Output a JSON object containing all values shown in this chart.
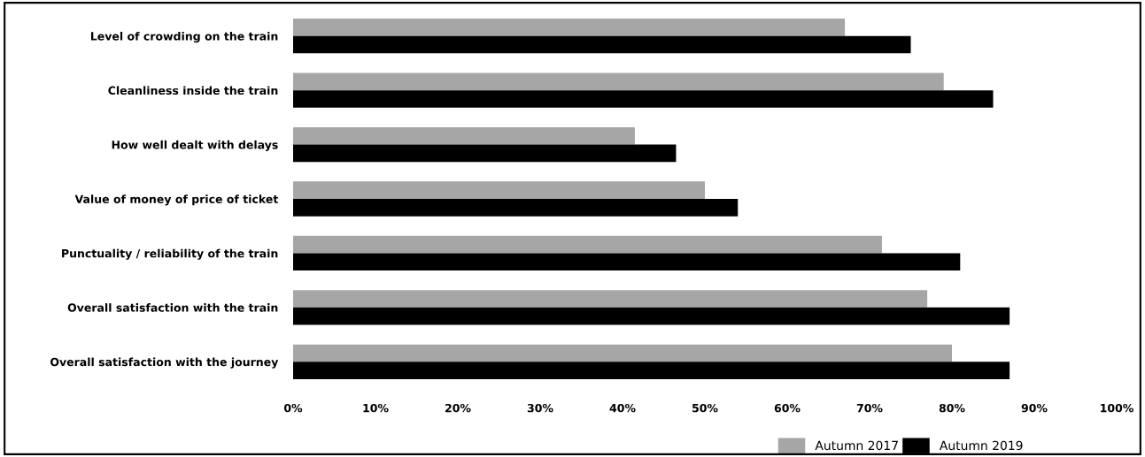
{
  "chart_data": {
    "type": "bar",
    "orientation": "horizontal",
    "categories": [
      "Level of crowding on the train",
      "Cleanliness inside the train",
      "How well dealt with delays",
      "Value of money of price of ticket",
      "Punctuality / reliability of the train",
      "Overall satisfaction with the train",
      "Overall satisfaction with the journey"
    ],
    "series": [
      {
        "name": "Autumn 2017",
        "color": "#a6a6a6",
        "values": [
          67,
          79,
          41.5,
          50,
          71.5,
          77,
          80
        ]
      },
      {
        "name": "Autumn 2019",
        "color": "#000000",
        "values": [
          75,
          85,
          46.5,
          54,
          81,
          87,
          87
        ]
      }
    ],
    "xlim": [
      0,
      100
    ],
    "xticks": [
      {
        "value": 0,
        "label": "0%"
      },
      {
        "value": 10,
        "label": "10%"
      },
      {
        "value": 20,
        "label": "20%"
      },
      {
        "value": 30,
        "label": "30%"
      },
      {
        "value": 40,
        "label": "40%"
      },
      {
        "value": 50,
        "label": "50%"
      },
      {
        "value": 60,
        "label": "60%"
      },
      {
        "value": 70,
        "label": "70%"
      },
      {
        "value": 80,
        "label": "80%"
      },
      {
        "value": 90,
        "label": "90%"
      },
      {
        "value": 100,
        "label": "100%"
      }
    ],
    "grid": false,
    "legend": "bottom right"
  }
}
